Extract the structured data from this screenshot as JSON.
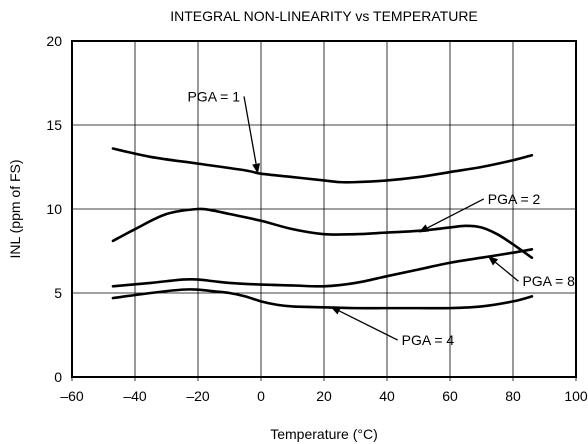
{
  "chart_data": {
    "type": "line",
    "title": "INTEGRAL NON-LINEARITY vs TEMPERATURE",
    "xlabel": "Temperature (°C)",
    "ylabel": "INL (ppm of FS)",
    "xlim": [
      -60,
      100
    ],
    "ylim": [
      0,
      20
    ],
    "x_ticks": [
      -60,
      -40,
      -20,
      0,
      20,
      40,
      60,
      80,
      100
    ],
    "x_tick_labels": [
      "–60",
      "–40",
      "–20",
      "0",
      "20",
      "40",
      "60",
      "80",
      "100"
    ],
    "y_ticks": [
      0,
      5,
      10,
      15,
      20
    ],
    "y_tick_labels": [
      "0",
      "5",
      "10",
      "15",
      "20"
    ],
    "grid": true,
    "series": [
      {
        "name": "PGA = 1",
        "x": [
          -47,
          -35,
          -20,
          -5,
          0,
          10,
          20,
          25,
          30,
          40,
          50,
          60,
          70,
          80,
          86
        ],
        "y": [
          13.6,
          13.1,
          12.7,
          12.3,
          12.1,
          11.9,
          11.7,
          11.6,
          11.6,
          11.7,
          11.9,
          12.2,
          12.5,
          12.9,
          13.2
        ]
      },
      {
        "name": "PGA = 2",
        "x": [
          -47,
          -40,
          -30,
          -20,
          -15,
          -10,
          0,
          10,
          20,
          30,
          40,
          50,
          60,
          65,
          70,
          75,
          80,
          86
        ],
        "y": [
          8.1,
          8.8,
          9.7,
          10.0,
          9.9,
          9.7,
          9.3,
          8.8,
          8.5,
          8.5,
          8.6,
          8.7,
          8.9,
          9.0,
          8.9,
          8.5,
          7.9,
          7.1
        ]
      },
      {
        "name": "PGA = 8",
        "x": [
          -47,
          -35,
          -25,
          -20,
          -15,
          -10,
          0,
          10,
          20,
          30,
          40,
          50,
          60,
          70,
          80,
          86
        ],
        "y": [
          5.4,
          5.6,
          5.8,
          5.8,
          5.7,
          5.6,
          5.5,
          5.45,
          5.4,
          5.6,
          6.0,
          6.4,
          6.8,
          7.1,
          7.4,
          7.6
        ]
      },
      {
        "name": "PGA = 4",
        "x": [
          -47,
          -35,
          -25,
          -20,
          -15,
          -10,
          -5,
          0,
          5,
          10,
          20,
          30,
          40,
          50,
          60,
          70,
          80,
          86
        ],
        "y": [
          4.7,
          5.0,
          5.2,
          5.2,
          5.1,
          5.0,
          4.8,
          4.5,
          4.3,
          4.2,
          4.15,
          4.1,
          4.1,
          4.1,
          4.1,
          4.2,
          4.5,
          4.8
        ]
      }
    ],
    "annotations": [
      {
        "text": "PGA = 1",
        "x": -15,
        "y": 16.7,
        "arrow_to": [
          -1,
          12.1
        ],
        "anchor": "middle"
      },
      {
        "text": "PGA = 2",
        "x": 72,
        "y": 10.6,
        "arrow_to": [
          50,
          8.6
        ],
        "anchor": "start"
      },
      {
        "text": "PGA = 8",
        "x": 83,
        "y": 5.7,
        "arrow_to": [
          72,
          7.2
        ],
        "anchor": "start"
      },
      {
        "text": "PGA = 4",
        "x": 53,
        "y": 2.2,
        "arrow_to": [
          22,
          4.2
        ],
        "anchor": "middle"
      }
    ]
  }
}
